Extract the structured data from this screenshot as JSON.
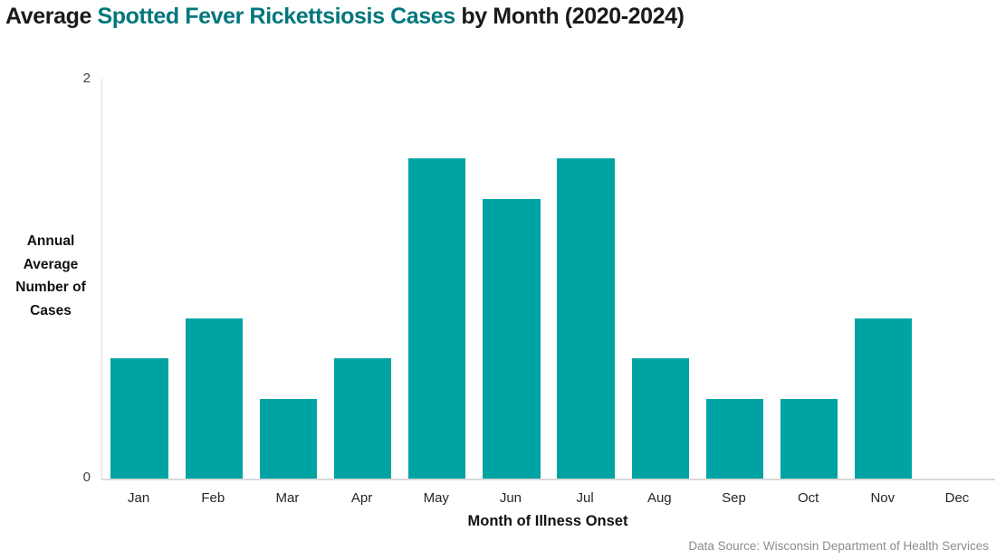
{
  "title": {
    "prefix": "Average ",
    "highlight": "Spotted Fever Rickettsiosis Cases",
    "suffix": " by Month (2020-2024)"
  },
  "chart_data": {
    "type": "bar",
    "title": "Average Spotted Fever Rickettsiosis Cases by Month (2020-2024)",
    "categories": [
      "Jan",
      "Feb",
      "Mar",
      "Apr",
      "May",
      "Jun",
      "Jul",
      "Aug",
      "Sep",
      "Oct",
      "Nov",
      "Dec"
    ],
    "values": [
      0.6,
      0.8,
      0.4,
      0.6,
      1.6,
      1.4,
      1.6,
      0.6,
      0.4,
      0.4,
      0.8,
      0
    ],
    "xlabel": "Month of Illness Onset",
    "ylabel": "Annual Average Number of Cases",
    "ylabel_lines": [
      "Annual",
      "Average",
      "Number of",
      "Cases"
    ],
    "ylim": [
      0,
      2
    ],
    "ytick_labels": {
      "top": "2",
      "bottom": "0"
    },
    "grid": false,
    "legend": false,
    "bar_color": "#00A3A3"
  },
  "source": "Data Source: Wisconsin Department of Health Services",
  "colors": {
    "title_text": "#1A1A1A",
    "title_accent": "#00777C",
    "bar": "#00A3A3",
    "axis_line": "#D9D9D9",
    "tick_text": "#404040",
    "month_text": "#262626",
    "source_text": "#8C8C8C"
  }
}
